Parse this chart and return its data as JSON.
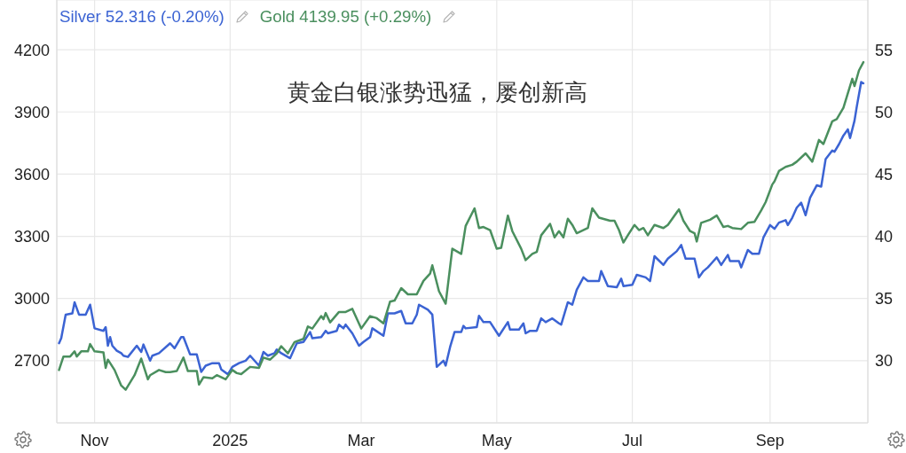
{
  "chart_data": {
    "type": "line",
    "title": "黄金白银涨势迅猛，屡创新高",
    "annotations": [
      "52.316 (-0.20%)",
      "4139.95 (+0.29%)"
    ],
    "xlim": [
      "2024-10-15",
      "2025-10-15"
    ],
    "xticks": [
      {
        "value": "2024-11-01",
        "label": "Nov"
      },
      {
        "value": "2025-01-01",
        "label": "2025"
      },
      {
        "value": "2025-03-01",
        "label": "Mar"
      },
      {
        "value": "2025-05-01",
        "label": "May"
      },
      {
        "value": "2025-07-01",
        "label": "Jul"
      },
      {
        "value": "2025-09-01",
        "label": "Sep"
      }
    ],
    "ylim": [
      2400,
      4440
    ],
    "yticks": [
      2700,
      3000,
      3300,
      3600,
      3900,
      4200
    ],
    "y2lim": [
      25,
      59
    ],
    "y2ticks": [
      30,
      35,
      40,
      45,
      50,
      55
    ],
    "grid": true,
    "legend": "top left",
    "marker": "none",
    "line_style": "solid",
    "series": [
      {
        "name": "Silver",
        "color": "#3b63d3",
        "axis": "y2",
        "x": [
          "2024-10-16",
          "2024-10-17",
          "2024-10-19",
          "2024-10-22",
          "2024-10-23",
          "2024-10-25",
          "2024-10-28",
          "2024-10-30",
          "2024-11-01",
          "2024-11-05",
          "2024-11-06",
          "2024-11-07",
          "2024-11-08",
          "2024-11-09",
          "2024-11-11",
          "2024-11-13",
          "2024-11-14",
          "2024-11-16",
          "2024-11-20",
          "2024-11-22",
          "2024-11-23",
          "2024-11-26",
          "2024-11-27",
          "2024-11-30",
          "2024-12-05",
          "2024-12-07",
          "2024-12-10",
          "2024-12-11",
          "2024-12-14",
          "2024-12-17",
          "2024-12-19",
          "2024-12-21",
          "2024-12-24",
          "2024-12-27",
          "2024-12-28",
          "2024-12-31",
          "2025-01-02",
          "2025-01-05",
          "2025-01-08",
          "2025-01-10",
          "2025-01-14",
          "2025-01-16",
          "2025-01-18",
          "2025-01-21",
          "2025-01-22",
          "2025-01-24",
          "2025-01-28",
          "2025-01-31",
          "2025-02-03",
          "2025-02-06",
          "2025-02-07",
          "2025-02-11",
          "2025-02-13",
          "2025-02-14",
          "2025-02-18",
          "2025-02-19",
          "2025-02-21",
          "2025-02-22",
          "2025-02-25",
          "2025-02-28",
          "2025-03-02",
          "2025-03-05",
          "2025-03-06",
          "2025-03-11",
          "2025-03-13",
          "2025-03-16",
          "2025-03-19",
          "2025-03-21",
          "2025-03-24",
          "2025-03-26",
          "2025-03-27",
          "2025-03-31",
          "2025-04-02",
          "2025-04-04",
          "2025-04-07",
          "2025-04-08",
          "2025-04-10",
          "2025-04-12",
          "2025-04-15",
          "2025-04-16",
          "2025-04-17",
          "2025-04-22",
          "2025-04-23",
          "2025-04-25",
          "2025-04-28",
          "2025-05-02",
          "2025-05-06",
          "2025-05-07",
          "2025-05-11",
          "2025-05-13",
          "2025-05-14",
          "2025-05-16",
          "2025-05-19",
          "2025-05-21",
          "2025-05-23",
          "2025-05-26",
          "2025-05-29",
          "2025-05-30",
          "2025-06-02",
          "2025-06-04",
          "2025-06-06",
          "2025-06-09",
          "2025-06-11",
          "2025-06-16",
          "2025-06-17",
          "2025-06-20",
          "2025-06-24",
          "2025-06-26",
          "2025-06-27",
          "2025-07-01",
          "2025-07-03",
          "2025-07-07",
          "2025-07-09",
          "2025-07-11",
          "2025-07-15",
          "2025-07-17",
          "2025-07-21",
          "2025-07-23",
          "2025-07-25",
          "2025-07-29",
          "2025-07-31",
          "2025-08-02",
          "2025-08-04",
          "2025-08-06",
          "2025-08-08",
          "2025-08-10",
          "2025-08-13",
          "2025-08-14",
          "2025-08-18",
          "2025-08-19",
          "2025-08-22",
          "2025-08-24",
          "2025-08-27",
          "2025-08-29",
          "2025-09-01",
          "2025-09-03",
          "2025-09-05",
          "2025-09-08",
          "2025-09-09",
          "2025-09-11",
          "2025-09-13",
          "2025-09-15",
          "2025-09-17",
          "2025-09-19",
          "2025-09-22",
          "2025-09-24",
          "2025-09-26",
          "2025-09-29",
          "2025-09-30",
          "2025-10-02",
          "2025-10-04",
          "2025-10-06",
          "2025-10-07",
          "2025-10-09",
          "2025-10-10",
          "2025-10-12",
          "2025-10-13"
        ],
        "values": [
          31.4,
          31.8,
          33.7,
          33.8,
          34.7,
          33.7,
          33.7,
          34.5,
          32.6,
          32.4,
          32.7,
          31.2,
          31.9,
          31.2,
          30.8,
          30.6,
          30.4,
          30.3,
          31.2,
          30.7,
          31.3,
          30.0,
          30.4,
          30.6,
          31.4,
          31.0,
          31.9,
          31.9,
          30.5,
          30.5,
          29.1,
          29.6,
          29.8,
          29.8,
          29.3,
          28.9,
          29.5,
          29.8,
          30.0,
          30.4,
          29.6,
          30.7,
          30.4,
          30.6,
          30.9,
          30.6,
          30.2,
          31.4,
          31.5,
          32.3,
          31.8,
          31.9,
          32.4,
          32.2,
          32.4,
          32.9,
          32.6,
          32.9,
          32.2,
          31.2,
          31.5,
          31.9,
          32.6,
          32.0,
          33.8,
          33.8,
          34.0,
          33.0,
          33.0,
          33.7,
          34.5,
          34.1,
          33.7,
          29.5,
          30.0,
          29.6,
          31.1,
          32.3,
          32.3,
          32.8,
          32.6,
          32.7,
          33.6,
          33.1,
          33.1,
          32.0,
          33.1,
          32.5,
          32.5,
          33.0,
          32.2,
          32.4,
          32.4,
          33.4,
          33.1,
          33.4,
          33.0,
          32.9,
          34.7,
          34.5,
          35.7,
          36.7,
          36.4,
          36.4,
          37.2,
          36.0,
          35.9,
          36.6,
          36.0,
          36.1,
          36.9,
          36.7,
          36.4,
          38.4,
          37.7,
          38.2,
          38.8,
          39.3,
          38.2,
          38.2,
          36.7,
          37.2,
          37.5,
          37.9,
          38.3,
          37.7,
          38.5,
          38.0,
          38.0,
          37.5,
          38.9,
          38.6,
          38.6,
          39.9,
          40.9,
          40.6,
          41.1,
          41.3,
          40.9,
          41.5,
          42.3,
          42.7,
          41.7,
          43.1,
          44.1,
          44.0,
          46.2,
          46.9,
          46.8,
          47.4,
          48.1,
          48.6,
          47.9,
          49.3,
          50.4,
          52.4,
          52.3
        ]
      },
      {
        "name": "Gold",
        "color": "#4a8f5e",
        "x": [
          "2024-10-16",
          "2024-10-18",
          "2024-10-21",
          "2024-10-23",
          "2024-10-24",
          "2024-10-26",
          "2024-10-29",
          "2024-10-30",
          "2024-11-01",
          "2024-11-05",
          "2024-11-06",
          "2024-11-07",
          "2024-11-10",
          "2024-11-13",
          "2024-11-15",
          "2024-11-19",
          "2024-11-22",
          "2024-11-25",
          "2024-11-26",
          "2024-11-30",
          "2024-12-03",
          "2024-12-05",
          "2024-12-08",
          "2024-12-11",
          "2024-12-13",
          "2024-12-17",
          "2024-12-18",
          "2024-12-20",
          "2024-12-24",
          "2024-12-26",
          "2024-12-30",
          "2025-01-02",
          "2025-01-04",
          "2025-01-06",
          "2025-01-10",
          "2025-01-14",
          "2025-01-16",
          "2025-01-19",
          "2025-01-22",
          "2025-01-24",
          "2025-01-27",
          "2025-01-30",
          "2025-02-03",
          "2025-02-05",
          "2025-02-07",
          "2025-02-11",
          "2025-02-12",
          "2025-02-13",
          "2025-02-15",
          "2025-02-19",
          "2025-02-22",
          "2025-02-25",
          "2025-03-01",
          "2025-03-05",
          "2025-03-08",
          "2025-03-11",
          "2025-03-14",
          "2025-03-16",
          "2025-03-19",
          "2025-03-22",
          "2025-03-26",
          "2025-03-29",
          "2025-04-01",
          "2025-04-02",
          "2025-04-05",
          "2025-04-08",
          "2025-04-11",
          "2025-04-15",
          "2025-04-17",
          "2025-04-21",
          "2025-04-23",
          "2025-04-25",
          "2025-04-28",
          "2025-05-01",
          "2025-05-03",
          "2025-05-06",
          "2025-05-08",
          "2025-05-12",
          "2025-05-14",
          "2025-05-17",
          "2025-05-19",
          "2025-05-21",
          "2025-05-25",
          "2025-05-27",
          "2025-05-29",
          "2025-05-31",
          "2025-06-02",
          "2025-06-04",
          "2025-06-06",
          "2025-06-11",
          "2025-06-13",
          "2025-06-16",
          "2025-06-21",
          "2025-06-23",
          "2025-06-25",
          "2025-06-27",
          "2025-06-29",
          "2025-07-02",
          "2025-07-04",
          "2025-07-06",
          "2025-07-08",
          "2025-07-11",
          "2025-07-15",
          "2025-07-17",
          "2025-07-22",
          "2025-07-24",
          "2025-07-27",
          "2025-07-29",
          "2025-07-30",
          "2025-08-01",
          "2025-08-05",
          "2025-08-08",
          "2025-08-11",
          "2025-08-13",
          "2025-08-15",
          "2025-08-19",
          "2025-08-22",
          "2025-08-25",
          "2025-08-28",
          "2025-08-30",
          "2025-09-02",
          "2025-09-03",
          "2025-09-05",
          "2025-09-08",
          "2025-09-11",
          "2025-09-13",
          "2025-09-17",
          "2025-09-20",
          "2025-09-23",
          "2025-09-25",
          "2025-09-29",
          "2025-10-01",
          "2025-10-04",
          "2025-10-08",
          "2025-10-09",
          "2025-10-11",
          "2025-10-13"
        ],
        "values": [
          2655,
          2720,
          2720,
          2745,
          2720,
          2745,
          2745,
          2780,
          2745,
          2740,
          2665,
          2705,
          2655,
          2580,
          2560,
          2630,
          2710,
          2610,
          2630,
          2655,
          2645,
          2645,
          2650,
          2715,
          2650,
          2650,
          2585,
          2620,
          2615,
          2630,
          2610,
          2655,
          2640,
          2635,
          2670,
          2665,
          2715,
          2705,
          2735,
          2770,
          2735,
          2790,
          2805,
          2865,
          2855,
          2915,
          2900,
          2930,
          2885,
          2935,
          2935,
          2950,
          2855,
          2915,
          2905,
          2880,
          2985,
          2990,
          3050,
          3020,
          3020,
          3085,
          3120,
          3160,
          3035,
          2975,
          3240,
          3215,
          3350,
          3435,
          3340,
          3345,
          3330,
          3240,
          3245,
          3400,
          3325,
          3240,
          3185,
          3215,
          3225,
          3305,
          3360,
          3295,
          3325,
          3295,
          3385,
          3355,
          3315,
          3340,
          3435,
          3390,
          3375,
          3375,
          3330,
          3270,
          3305,
          3355,
          3330,
          3340,
          3305,
          3355,
          3340,
          3355,
          3430,
          3375,
          3325,
          3315,
          3275,
          3365,
          3380,
          3400,
          3345,
          3350,
          3340,
          3335,
          3365,
          3370,
          3425,
          3465,
          3550,
          3565,
          3615,
          3635,
          3645,
          3660,
          3700,
          3660,
          3765,
          3745,
          3855,
          3865,
          3920,
          4060,
          4025,
          4100,
          4140
        ]
      }
    ]
  }
}
